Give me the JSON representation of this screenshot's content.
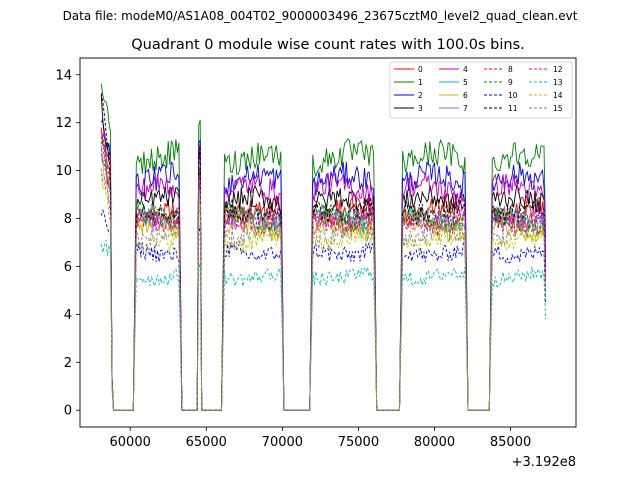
{
  "chart_data": {
    "type": "line",
    "suptitle": "Data file: modeM0/AS1A08_004T02_9000003496_23675cztM0_level2_quad_clean.evt",
    "title": "Quadrant 0 module wise count rates with 100.0s bins.",
    "xlabel": "",
    "ylabel": "",
    "offset_label": "+3.192e8",
    "xlim": [
      56700,
      89300
    ],
    "ylim": [
      -0.7,
      14.7
    ],
    "xticks": [
      60000,
      65000,
      70000,
      75000,
      80000,
      85000
    ],
    "xtick_labels": [
      "60000",
      "65000",
      "70000",
      "75000",
      "80000",
      "85000"
    ],
    "yticks": [
      0,
      2,
      4,
      6,
      8,
      10,
      12,
      14
    ],
    "ytick_labels": [
      "0",
      "2",
      "4",
      "6",
      "8",
      "10",
      "12",
      "14"
    ],
    "legend_position": "top-right",
    "segments": [
      [
        58100,
        58800
      ],
      [
        60300,
        63300
      ],
      [
        64500,
        64600
      ],
      [
        66100,
        70000
      ],
      [
        71900,
        76100
      ],
      [
        77800,
        82100
      ],
      [
        83700,
        87300
      ]
    ],
    "series": [
      {
        "name": "0",
        "color": "#ff0000",
        "dash": "solid",
        "level": 8.3,
        "start": 11.5
      },
      {
        "name": "1",
        "color": "#008000",
        "dash": "solid",
        "level": 10.5,
        "start": 13.9
      },
      {
        "name": "2",
        "color": "#0000ff",
        "dash": "solid",
        "level": 9.6,
        "start": 12.3
      },
      {
        "name": "3",
        "color": "#000000",
        "dash": "solid",
        "level": 8.7,
        "start": 12.8
      },
      {
        "name": "4",
        "color": "#bf00bf",
        "dash": "solid",
        "level": 9.2,
        "start": 11.9
      },
      {
        "name": "5",
        "color": "#00bfbf",
        "dash": "solid",
        "level": 7.9,
        "start": 10.8
      },
      {
        "name": "6",
        "color": "#bfbf00",
        "dash": "solid",
        "level": 7.6,
        "start": 10.6
      },
      {
        "name": "7",
        "color": "#808080",
        "dash": "solid",
        "level": 8.0,
        "start": 11.0
      },
      {
        "name": "8",
        "color": "#ff0000",
        "dash": "dashed",
        "level": 7.9,
        "start": 11.2
      },
      {
        "name": "9",
        "color": "#008000",
        "dash": "dashed",
        "level": 8.1,
        "start": 11.4
      },
      {
        "name": "10",
        "color": "#0000ff",
        "dash": "dashed",
        "level": 6.6,
        "start": 8.2
      },
      {
        "name": "11",
        "color": "#000000",
        "dash": "dashed",
        "level": 8.4,
        "start": 13.4
      },
      {
        "name": "12",
        "color": "#ff00ff",
        "dash": "dashed",
        "level": 8.0,
        "start": 11.1
      },
      {
        "name": "13",
        "color": "#00bfbf",
        "dash": "dashed",
        "level": 5.6,
        "start": 7.0
      },
      {
        "name": "14",
        "color": "#bfbf00",
        "dash": "dashed",
        "level": 7.1,
        "start": 9.8
      },
      {
        "name": "15",
        "color": "#808080",
        "dash": "dashed",
        "level": 7.3,
        "start": 10.1
      }
    ]
  }
}
